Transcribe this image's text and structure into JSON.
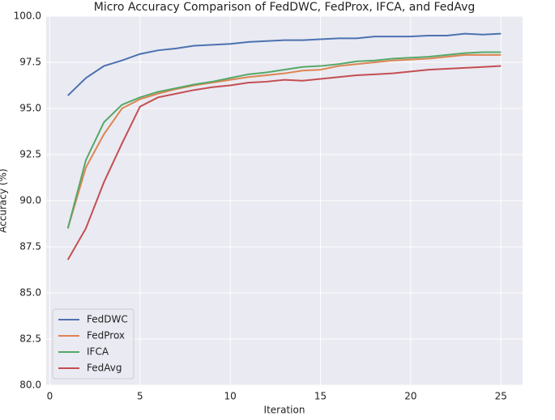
{
  "chart_data": {
    "type": "line",
    "title": "Micro Accuracy Comparison of FedDWC, FedProx, IFCA, and FedAvg",
    "x_label": "Iteration",
    "y_label": "Accuracy (%)",
    "x": [
      1,
      2,
      3,
      4,
      5,
      6,
      7,
      8,
      9,
      10,
      11,
      12,
      13,
      14,
      15,
      16,
      17,
      18,
      19,
      20,
      21,
      22,
      23,
      24,
      25
    ],
    "series": [
      {
        "name": "FedDWC",
        "color": "#4c72b0",
        "values": [
          95.7,
          96.65,
          97.3,
          97.6,
          97.95,
          98.15,
          98.25,
          98.4,
          98.45,
          98.5,
          98.6,
          98.65,
          98.7,
          98.7,
          98.75,
          98.8,
          98.8,
          98.9,
          98.9,
          98.9,
          98.95,
          98.95,
          99.05,
          99.0,
          99.05
        ]
      },
      {
        "name": "FedProx",
        "color": "#dd8452",
        "values": [
          88.5,
          91.8,
          93.6,
          95.0,
          95.5,
          95.8,
          96.05,
          96.25,
          96.4,
          96.55,
          96.7,
          96.8,
          96.9,
          97.05,
          97.1,
          97.3,
          97.4,
          97.5,
          97.6,
          97.65,
          97.7,
          97.8,
          97.9,
          97.9,
          97.9
        ]
      },
      {
        "name": "IFCA",
        "color": "#55a868",
        "values": [
          88.5,
          92.2,
          94.25,
          95.2,
          95.6,
          95.9,
          96.1,
          96.3,
          96.45,
          96.65,
          96.85,
          96.95,
          97.1,
          97.25,
          97.3,
          97.4,
          97.55,
          97.6,
          97.7,
          97.75,
          97.8,
          97.9,
          98.0,
          98.05,
          98.05
        ]
      },
      {
        "name": "FedAvg",
        "color": "#c44e52",
        "values": [
          86.8,
          88.5,
          91.0,
          93.1,
          95.1,
          95.6,
          95.8,
          96.0,
          96.15,
          96.25,
          96.4,
          96.45,
          96.55,
          96.5,
          96.6,
          96.7,
          96.8,
          96.85,
          96.9,
          97.0,
          97.1,
          97.15,
          97.2,
          97.25,
          97.3
        ]
      }
    ],
    "xlim": [
      -0.2,
      26.2
    ],
    "xticks": [
      0,
      5,
      10,
      15,
      20,
      25
    ],
    "ylim": [
      80,
      100
    ],
    "yticks": [
      {
        "value": 80,
        "label": "80.0"
      },
      82.5,
      {
        "value": 85,
        "label": "85.0"
      },
      87.5,
      {
        "value": 90,
        "label": "90.0"
      },
      92.5,
      {
        "value": 95,
        "label": "95.0"
      },
      97.5,
      {
        "value": 100,
        "label": "100.0"
      }
    ],
    "grid": true,
    "legend": "lower left"
  }
}
